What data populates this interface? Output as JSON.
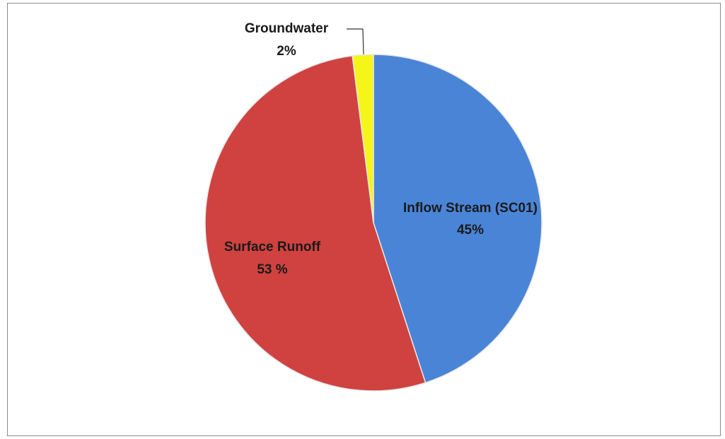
{
  "chart_data": {
    "type": "pie",
    "categories": [
      "Inflow Stream (SC01)",
      "Surface Runoff",
      "Groundwater"
    ],
    "values": [
      45,
      53,
      2
    ],
    "value_labels": [
      "45%",
      "53 %",
      "2%"
    ],
    "colors": [
      "#4a84d6",
      "#cf4240",
      "#f5f51a"
    ]
  }
}
